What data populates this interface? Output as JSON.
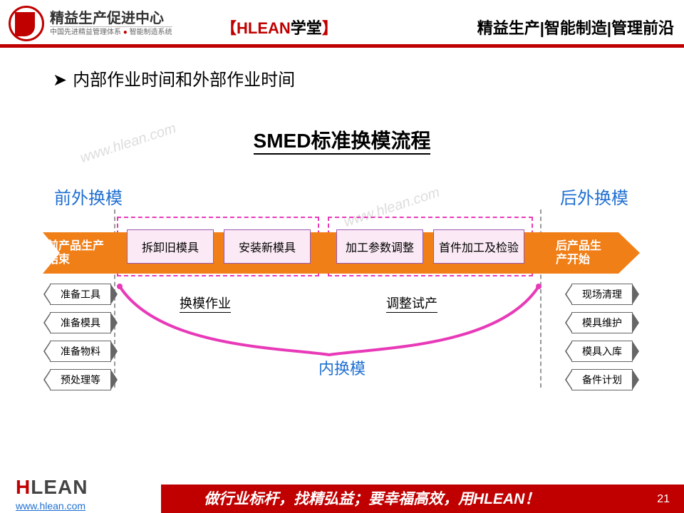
{
  "header": {
    "logo_title": "精益生产促进中心",
    "logo_sub_a": "中国先进精益管理体系",
    "logo_sub_b": "智能制造系统",
    "center_bracket_l": "【",
    "center_brand": "HLEAN",
    "center_word": "学堂",
    "center_bracket_r": "】",
    "right": "精益生产|智能制造|管理前沿"
  },
  "bullet": {
    "arrow": "➤",
    "text": "内部作业时间和外部作业时间"
  },
  "diagram": {
    "title": "SMED标准换模流程",
    "label_left": "前外换模",
    "label_right": "后外换模",
    "end_left": "前产品生产结束",
    "end_right": "后产品生产开始",
    "proc": [
      "拆卸旧模具",
      "安装新模具",
      "加工参数调整",
      "首件加工及检验"
    ],
    "under_a": "换模作业",
    "under_b": "调整试产",
    "inner_label": "内换模",
    "arrow_color": "#f07f18",
    "dashed_color": "#e83ab8",
    "box_fill": "#fbeaf5",
    "box_border": "#9a57b0",
    "brace_color": "#e83ab8",
    "blue": "#1f6fd1"
  },
  "hex_left": [
    "准备工具",
    "准备模具",
    "准备物料",
    "预处理等"
  ],
  "hex_right": [
    "现场清理",
    "模具维护",
    "模具入库",
    "备件计划"
  ],
  "footer": {
    "logo_h": "H",
    "logo_lean": "LEAN",
    "url": "www.hlean.com",
    "text": "做行业标杆，找精弘益；要幸福高效，用HLEAN！",
    "page": "21"
  },
  "watermarks": [
    "www.hlean.com",
    "www.hlean.com"
  ]
}
